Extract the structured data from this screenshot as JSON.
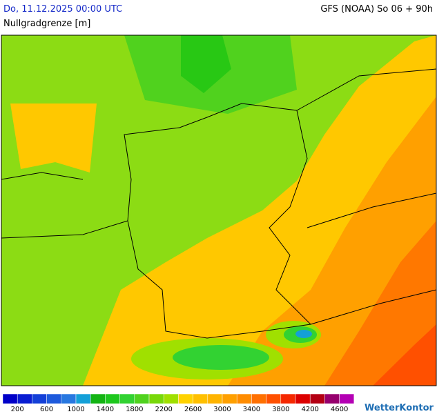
{
  "header": {
    "date": "Do, 11.12.2025 00:00 UTC",
    "title": "Nullgradgrenze [m]",
    "model": "GFS (NOAA) So 06 + 90h"
  },
  "legend": {
    "colors": [
      "#0000c8",
      "#0a1ed2",
      "#1440d8",
      "#1e5adc",
      "#2878e0",
      "#14a0d8",
      "#14b414",
      "#1ec81e",
      "#32d232",
      "#50d21e",
      "#78d80a",
      "#a0e000",
      "#ffd200",
      "#ffc000",
      "#ffb400",
      "#ffa000",
      "#ff8c00",
      "#ff7000",
      "#ff5000",
      "#f52800",
      "#dc0000",
      "#b40014",
      "#96006e",
      "#b400b4"
    ],
    "labels": [
      200,
      600,
      1000,
      1400,
      1800,
      2200,
      2600,
      3000,
      3400,
      3800,
      4200,
      4600
    ]
  },
  "logo": "WetterKontor"
}
